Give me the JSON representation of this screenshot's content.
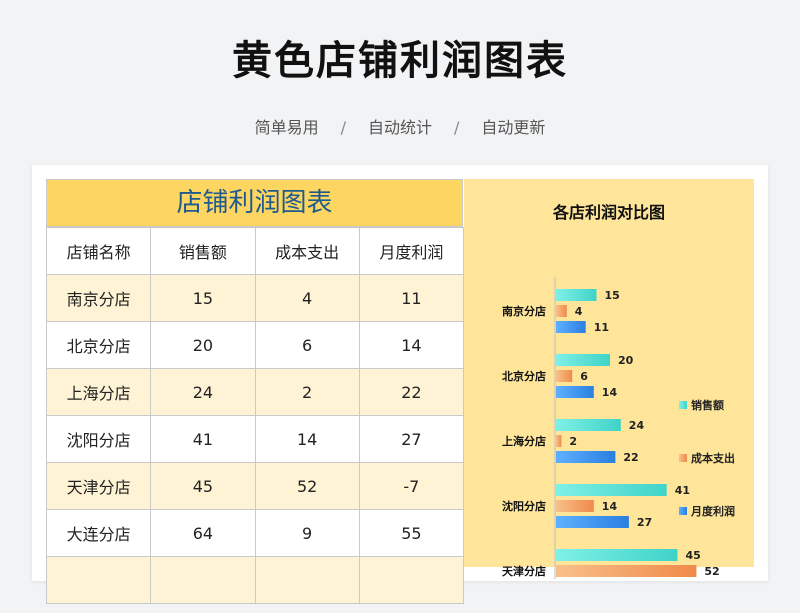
{
  "page": {
    "title": "黄色店铺利润图表",
    "tags": [
      "简单易用",
      "自动统计",
      "自动更新"
    ],
    "separator": "/"
  },
  "table": {
    "heading": "店铺利润图表",
    "columns": [
      "店铺名称",
      "销售额",
      "成本支出",
      "月度利润"
    ],
    "rows": [
      [
        "南京分店",
        "15",
        "4",
        "11"
      ],
      [
        "北京分店",
        "20",
        "6",
        "14"
      ],
      [
        "上海分店",
        "24",
        "2",
        "22"
      ],
      [
        "沈阳分店",
        "41",
        "14",
        "27"
      ],
      [
        "天津分店",
        "45",
        "52",
        "-7"
      ],
      [
        "大连分店",
        "64",
        "9",
        "55"
      ],
      [
        "",
        "",
        "",
        ""
      ]
    ]
  },
  "colors": {
    "header_yellow": "#fdd561",
    "row_alt": "#fff3d6",
    "chart_bg": "#ffe59a",
    "sales": "#3fd3c8",
    "cost": "#f08a4b",
    "profit": "#2a7fe0"
  },
  "chart_data": {
    "type": "bar",
    "orientation": "horizontal",
    "title": "各店利润对比图",
    "categories": [
      "南京分店",
      "北京分店",
      "上海分店",
      "沈阳分店",
      "天津分店"
    ],
    "series": [
      {
        "name": "销售额",
        "values": [
          15,
          20,
          24,
          41,
          45
        ]
      },
      {
        "name": "成本支出",
        "values": [
          4,
          6,
          2,
          14,
          52
        ]
      },
      {
        "name": "月度利润",
        "values": [
          11,
          14,
          22,
          27,
          null
        ]
      }
    ],
    "legend": "right",
    "grid": false
  }
}
